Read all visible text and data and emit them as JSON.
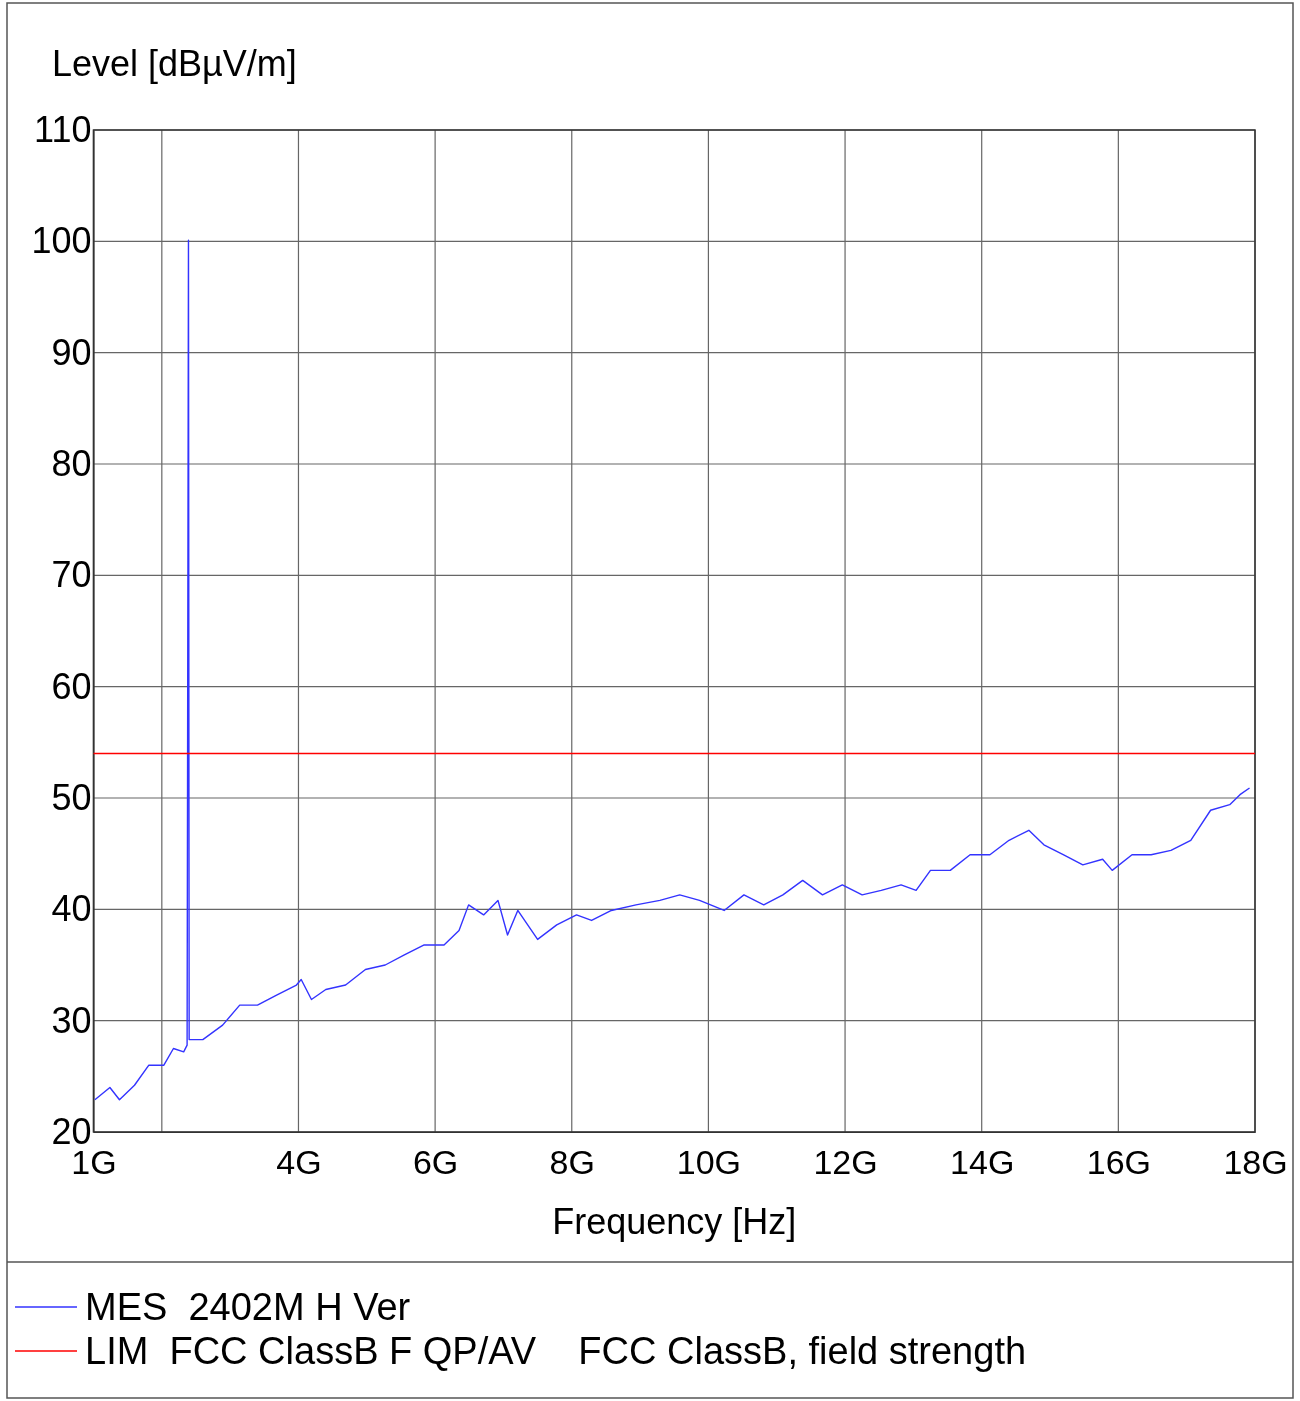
{
  "chart_data": {
    "type": "line",
    "ylabel": "Level [dBµV/m]",
    "xlabel": "Frequency [Hz]",
    "xlim": [
      1,
      18
    ],
    "xticks": [
      {
        "value": 1,
        "label": "1G"
      },
      {
        "value": 2,
        "label": null
      },
      {
        "value": 4,
        "label": "4G"
      },
      {
        "value": 6,
        "label": "6G"
      },
      {
        "value": 8,
        "label": "8G"
      },
      {
        "value": 10,
        "label": "10G"
      },
      {
        "value": 12,
        "label": "12G"
      },
      {
        "value": 14,
        "label": "14G"
      },
      {
        "value": 16,
        "label": "16G"
      },
      {
        "value": 18,
        "label": "18G"
      }
    ],
    "ylim": [
      20,
      110
    ],
    "yticks": [
      20,
      30,
      40,
      50,
      60,
      70,
      80,
      90,
      100,
      110
    ],
    "grid": true,
    "legend": "bottom",
    "series": [
      {
        "name": "MES  2402M H Ver",
        "color": "#3333ff",
        "x": [
          1.02,
          1.24,
          1.38,
          1.6,
          1.81,
          2.03,
          2.17,
          2.32,
          2.37,
          2.39,
          2.4,
          2.6,
          2.89,
          3.14,
          3.4,
          3.68,
          3.97,
          4.04,
          4.19,
          4.4,
          4.69,
          4.98,
          5.27,
          5.55,
          5.84,
          6.13,
          6.35,
          6.49,
          6.71,
          6.92,
          7.06,
          7.21,
          7.5,
          7.78,
          8.07,
          8.29,
          8.58,
          8.94,
          9.29,
          9.58,
          9.87,
          10.23,
          10.52,
          10.81,
          11.09,
          11.38,
          11.67,
          11.96,
          12.25,
          12.53,
          12.82,
          13.04,
          13.25,
          13.54,
          13.83,
          14.12,
          14.4,
          14.69,
          14.91,
          15.2,
          15.48,
          15.77,
          15.91,
          16.2,
          16.48,
          16.77,
          17.06,
          17.35,
          17.63,
          17.78,
          17.92
        ],
        "values": [
          22.9,
          24.0,
          22.9,
          24.2,
          26.0,
          26.0,
          27.5,
          27.2,
          27.8,
          100.1,
          28.3,
          28.3,
          29.6,
          31.4,
          31.4,
          32.3,
          33.2,
          33.7,
          31.9,
          32.8,
          33.2,
          34.6,
          35.0,
          35.9,
          36.8,
          36.8,
          38.1,
          40.4,
          39.5,
          40.8,
          37.7,
          39.9,
          37.3,
          38.6,
          39.5,
          39.0,
          39.9,
          40.4,
          40.8,
          41.3,
          40.8,
          39.9,
          41.3,
          40.4,
          41.3,
          42.6,
          41.3,
          42.2,
          41.3,
          41.7,
          42.2,
          41.7,
          43.5,
          43.5,
          44.9,
          44.9,
          46.2,
          47.1,
          45.8,
          44.9,
          44.0,
          44.5,
          43.5,
          44.9,
          44.9,
          45.3,
          46.2,
          48.9,
          49.4,
          50.3,
          50.9
        ]
      },
      {
        "name": "LIM  FCC ClassB F QP/AV    FCC ClassB, field strength",
        "color": "#ff0000",
        "x": [
          1,
          18
        ],
        "values": [
          54,
          54
        ]
      }
    ]
  }
}
